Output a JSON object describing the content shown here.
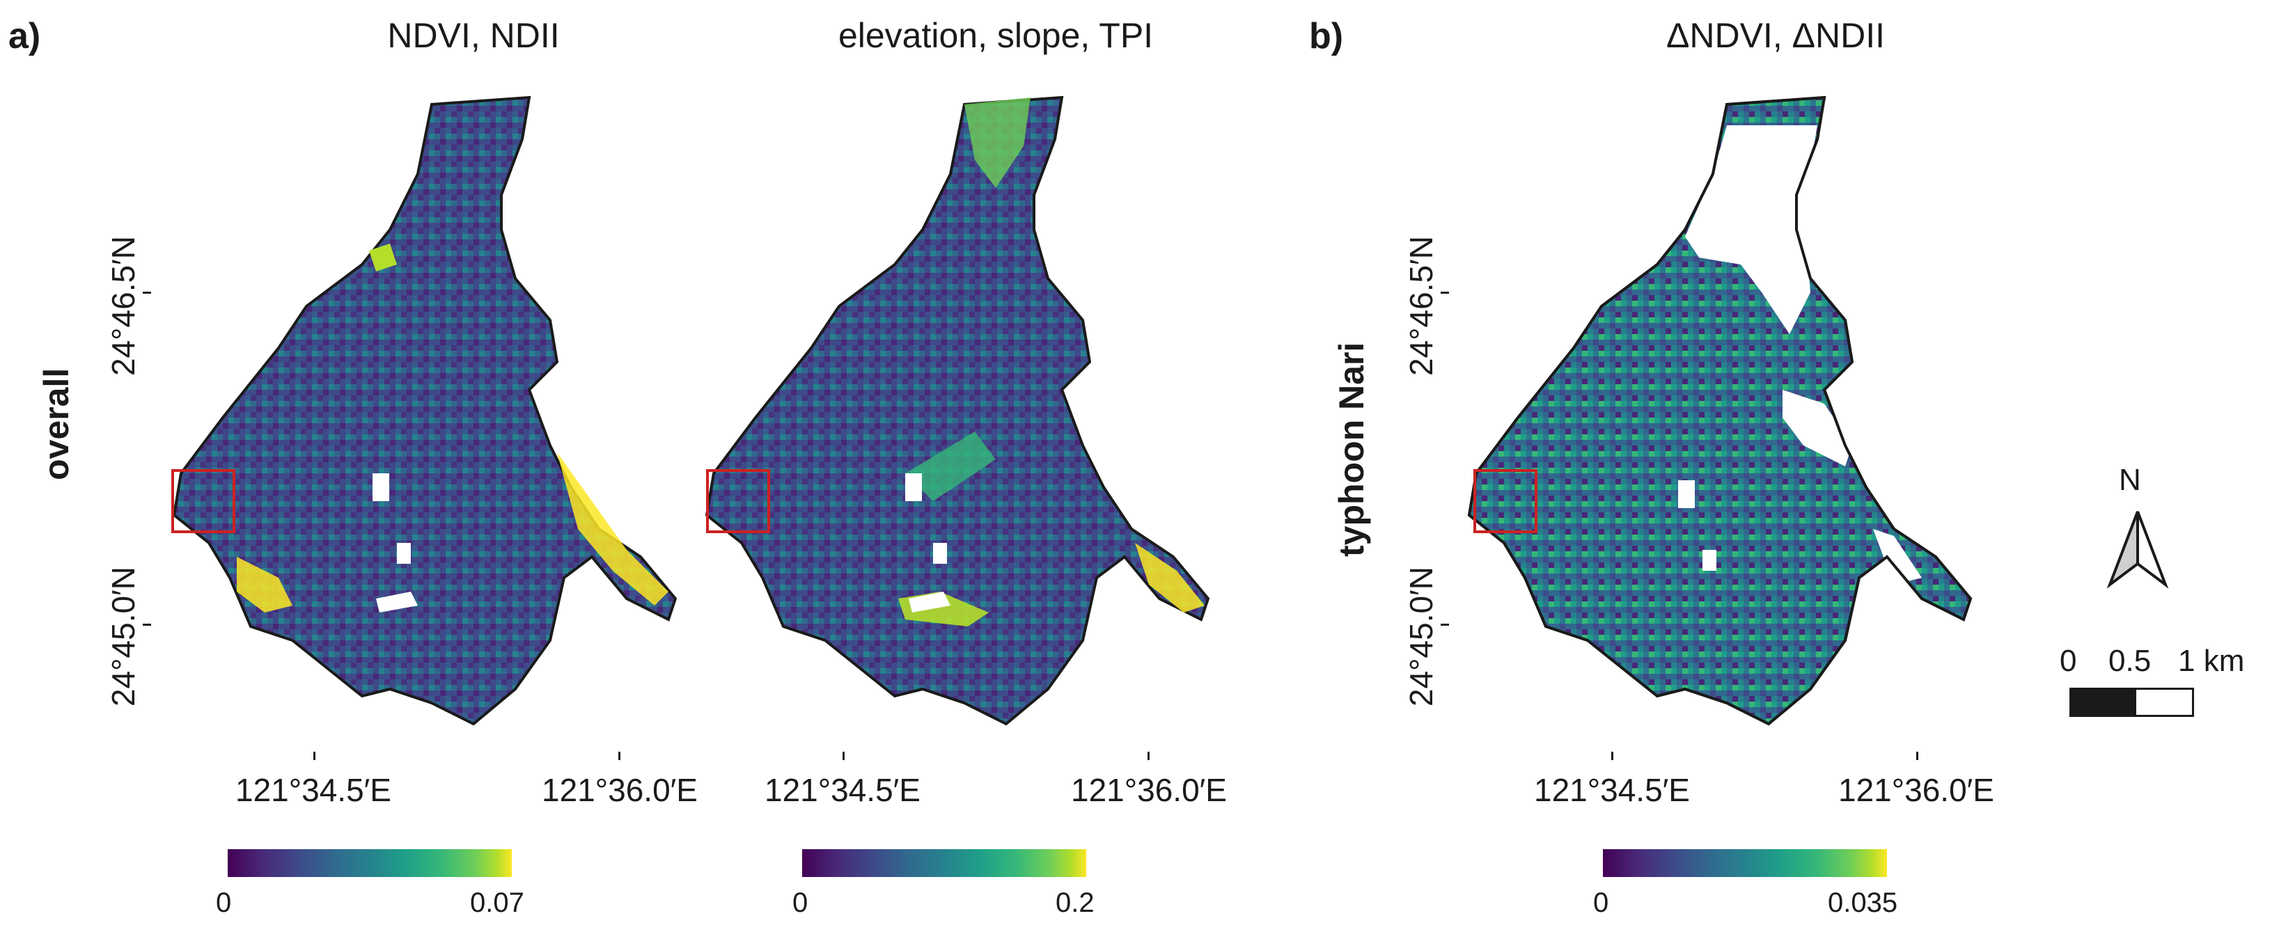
{
  "panel_a": {
    "letter": "a)",
    "row_label": "overall",
    "maps": [
      {
        "title": "NDVI, NDII",
        "colorbar": {
          "min_label": "0",
          "max_label": "0.07",
          "range": [
            0,
            0.07
          ]
        }
      },
      {
        "title": "elevation, slope, TPI",
        "colorbar": {
          "min_label": "0",
          "max_label": "0.2",
          "range": [
            0,
            0.2
          ]
        }
      }
    ],
    "lat_labels": [
      "24°46.5′N",
      "24°45.0′N"
    ]
  },
  "panel_b": {
    "letter": "b)",
    "row_label": "typhoon Nari",
    "maps": [
      {
        "title": "ΔNDVI, ΔNDII",
        "colorbar": {
          "min_label": "0",
          "max_label": "0.035",
          "range": [
            0,
            0.035
          ]
        }
      }
    ],
    "lat_labels": [
      "24°46.5′N",
      "24°45.0′N"
    ]
  },
  "lon_labels": [
    "121°34.5′E",
    "121°36.0′E"
  ],
  "north_arrow": {
    "label": "N"
  },
  "scale_bar": {
    "labels": [
      "0",
      "0.5",
      "1 km"
    ]
  },
  "colors": {
    "outline": "#1a1a1a",
    "inset_box": "#cc2222",
    "viridis_low": "#440154",
    "viridis_high": "#fde725"
  }
}
